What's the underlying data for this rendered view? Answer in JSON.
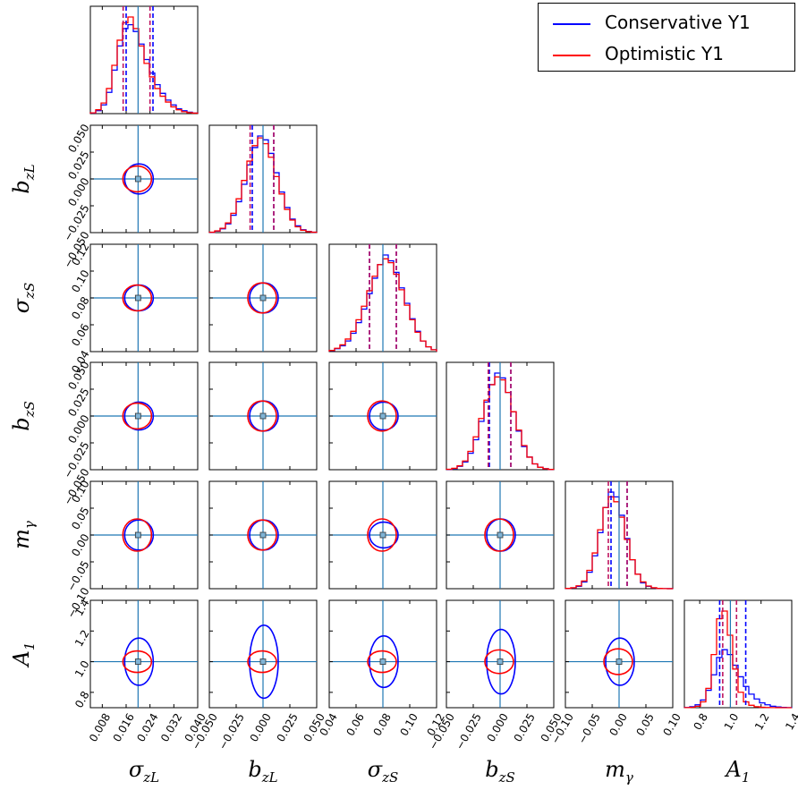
{
  "colors": {
    "conservative": "#0000ff",
    "optimistic": "#ff0000",
    "quantile_marker": "#bf1660",
    "truth": "#1f77b4",
    "frame": "#000000"
  },
  "legend": {
    "placement": "top-right",
    "entries": [
      {
        "label": "Conservative Y1",
        "color": "#0000ff"
      },
      {
        "label": "Optimistic Y1",
        "color": "#ff0000"
      }
    ]
  },
  "chart_data": {
    "type": "corner",
    "grid": false,
    "parameters": [
      {
        "name": "sigma_zL",
        "label": "σ",
        "sub": "zL",
        "range": [
          0.004,
          0.04
        ],
        "truth": 0.02,
        "ticks": [
          "0.008",
          "0.016",
          "0.024",
          "0.032",
          "0.040"
        ],
        "ytick_labels": [],
        "quantiles": {
          "conservative": [
            0.016,
            0.025
          ],
          "optimistic": [
            0.015,
            0.024
          ]
        },
        "hist": {
          "conservative": [
            0.6,
            3,
            9,
            22,
            45,
            70,
            88,
            92,
            85,
            72,
            56,
            42,
            30,
            21,
            14,
            9,
            5,
            3,
            1.5,
            0.6
          ],
          "optimistic": [
            0.8,
            4,
            11,
            26,
            50,
            76,
            94,
            100,
            88,
            70,
            52,
            38,
            26,
            18,
            12,
            7,
            4,
            2,
            1,
            0.5
          ]
        }
      },
      {
        "name": "b_zL",
        "label": "b",
        "sub": "zL",
        "range": [
          -0.05,
          0.05
        ],
        "truth": 0.0,
        "ticks": [
          "−0.050",
          "−0.025",
          "0.000",
          "0.025",
          "0.050"
        ],
        "ytick_labels": [
          "0.050",
          "0.025",
          "0.000",
          "−0.025",
          "−0.050"
        ],
        "quantiles": {
          "conservative": [
            -0.01,
            0.01
          ],
          "optimistic": [
            -0.012,
            0.01
          ]
        },
        "hist": {
          "conservative": [
            0.3,
            1.5,
            4,
            9,
            18,
            32,
            50,
            70,
            88,
            100,
            96,
            82,
            62,
            42,
            26,
            14,
            7,
            3,
            1.2,
            0.4
          ],
          "optimistic": [
            0.4,
            1.8,
            4.5,
            10,
            20,
            35,
            54,
            74,
            90,
            98,
            92,
            78,
            58,
            40,
            24,
            13,
            6,
            2.5,
            1,
            0.4
          ]
        }
      },
      {
        "name": "sigma_zS",
        "label": "σ",
        "sub": "zS",
        "range": [
          0.04,
          0.12
        ],
        "truth": 0.08,
        "ticks": [
          "0.04",
          "0.06",
          "0.08",
          "0.10",
          "0.12"
        ],
        "ytick_labels": [
          "0.12",
          "0.10",
          "0.08",
          "0.06",
          "0.04"
        ],
        "quantiles": {
          "conservative": [
            0.07,
            0.09
          ],
          "optimistic": [
            0.07,
            0.09
          ]
        },
        "hist": {
          "conservative": [
            1,
            3,
            6,
            11,
            19,
            30,
            44,
            60,
            76,
            90,
            100,
            94,
            82,
            66,
            50,
            34,
            21,
            11,
            5,
            2
          ],
          "optimistic": [
            1.2,
            3.5,
            7,
            13,
            21,
            33,
            47,
            63,
            78,
            90,
            96,
            92,
            80,
            64,
            48,
            33,
            20,
            11,
            5,
            2
          ]
        }
      },
      {
        "name": "b_zS",
        "label": "b",
        "sub": "zS",
        "range": [
          -0.05,
          0.05
        ],
        "truth": 0.0,
        "ticks": [
          "−0.050",
          "−0.025",
          "0.000",
          "0.025",
          "0.050"
        ],
        "ytick_labels": [
          "0.050",
          "0.025",
          "0.000",
          "−0.025",
          "−0.050"
        ],
        "quantiles": {
          "conservative": [
            -0.01,
            0.01
          ],
          "optimistic": [
            -0.011,
            0.01
          ]
        },
        "hist": {
          "conservative": [
            0.3,
            1.2,
            3.5,
            8,
            17,
            31,
            50,
            70,
            88,
            100,
            95,
            80,
            60,
            40,
            24,
            13,
            6,
            2.5,
            1,
            0.3
          ],
          "optimistic": [
            0.4,
            1.5,
            4,
            9,
            19,
            34,
            53,
            72,
            88,
            96,
            93,
            80,
            60,
            41,
            25,
            13,
            6,
            2.5,
            1,
            0.3
          ]
        }
      },
      {
        "name": "m_gamma",
        "label": "m",
        "sub": "γ",
        "range": [
          -0.1,
          0.1
        ],
        "truth": 0.0,
        "ticks": [
          "−0.10",
          "−0.05",
          "0.00",
          "0.05",
          "0.10"
        ],
        "ytick_labels": [
          "0.10",
          "0.05",
          "0.00",
          "−0.05",
          "−0.10"
        ],
        "quantiles": {
          "conservative": [
            -0.015,
            0.015
          ],
          "optimistic": [
            -0.02,
            0.015
          ]
        },
        "hist": {
          "conservative": [
            0.2,
            0.8,
            2.5,
            7,
            17,
            34,
            58,
            84,
            100,
            95,
            76,
            52,
            30,
            15,
            6,
            2.5,
            0.8,
            0.3,
            0.1,
            0.05
          ],
          "optimistic": [
            0.3,
            1,
            3,
            8,
            19,
            37,
            61,
            84,
            95,
            90,
            74,
            51,
            30,
            15,
            7,
            2.8,
            1,
            0.3,
            0.1,
            0.05
          ]
        }
      },
      {
        "name": "A_1",
        "label": "A",
        "sub": "1",
        "range": [
          0.7,
          1.4
        ],
        "truth": 1.0,
        "ticks": [
          "0.8",
          "1.0",
          "1.2",
          "1.4"
        ],
        "ytick_labels": [
          "1.4",
          "1.2",
          "1.0",
          "0.8"
        ],
        "quantiles": {
          "conservative": [
            0.93,
            1.1
          ],
          "optimistic": [
            0.95,
            1.04
          ]
        },
        "hist": {
          "conservative": [
            0.2,
            1,
            3,
            8,
            18,
            34,
            52,
            60,
            55,
            44,
            32,
            22,
            14,
            9,
            5,
            3,
            1.5,
            0.8,
            0.3,
            0.1
          ],
          "optimistic": [
            0.1,
            0.4,
            1.5,
            6,
            20,
            55,
            92,
            100,
            75,
            40,
            16,
            6,
            2.5,
            1,
            0.4,
            0.2,
            0.1,
            0.05,
            0,
            0
          ]
        }
      }
    ],
    "contours": {
      "conservative_rel": [
        [
          0.14,
          0.12
        ],
        [
          0.12,
          0.14,
          0.12
        ],
        [
          0.13,
          0.14,
          0.13,
          0.14
        ],
        [
          0.14,
          0.14,
          0.12,
          0.15,
          0.15
        ],
        [
          0.22,
          0.34,
          0.24,
          0.3,
          0.22
        ]
      ],
      "optimistic_rel": [
        [
          0.12,
          0.1
        ],
        [
          0.12,
          0.14,
          0.14
        ],
        [
          0.12,
          0.14,
          0.14,
          0.15
        ],
        [
          0.15,
          0.14,
          0.15,
          0.15,
          0.15
        ],
        [
          0.1,
          0.1,
          0.1,
          0.11,
          0.12
        ]
      ]
    }
  },
  "labels": {
    "sigma_zL": {
      "main": "σ",
      "sub": "zL"
    },
    "b_zL": {
      "main": "b",
      "sub": "zL"
    },
    "sigma_zS": {
      "main": "σ",
      "sub": "zS"
    },
    "b_zS": {
      "main": "b",
      "sub": "zS"
    },
    "m_gamma": {
      "main": "m",
      "sub": "γ"
    },
    "A_1": {
      "main": "A",
      "sub": "1"
    }
  }
}
